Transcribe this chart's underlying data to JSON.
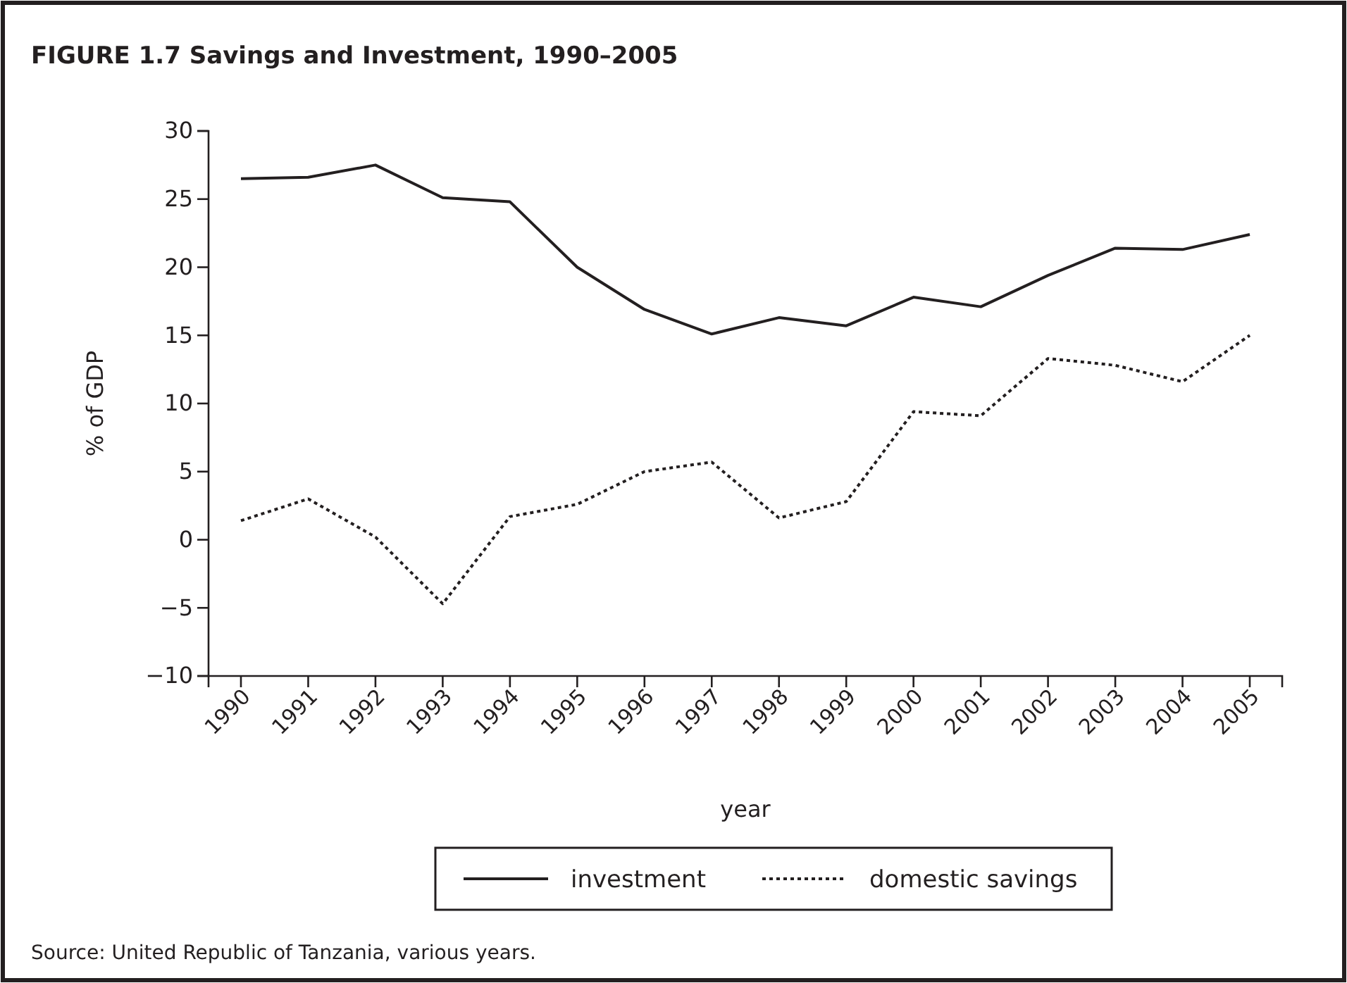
{
  "chart_data": {
    "type": "line",
    "title": "FIGURE 1.7  Savings and Investment, 1990–2005",
    "xlabel": "year",
    "ylabel": "% of GDP",
    "categories": [
      "1990",
      "1991",
      "1992",
      "1993",
      "1994",
      "1995",
      "1996",
      "1997",
      "1998",
      "1999",
      "2000",
      "2001",
      "2002",
      "2003",
      "2004",
      "2005"
    ],
    "series": [
      {
        "name": "investment",
        "color": "#231f20",
        "line_style": "solid",
        "values": [
          26.5,
          26.6,
          27.5,
          25.1,
          24.8,
          20.0,
          16.9,
          15.1,
          16.3,
          15.7,
          17.8,
          17.1,
          19.4,
          21.4,
          21.3,
          22.4
        ]
      },
      {
        "name": "domestic savings",
        "color": "#231f20",
        "line_style": "dotted",
        "values": [
          1.4,
          3.0,
          0.2,
          -4.7,
          1.7,
          2.6,
          5.0,
          5.7,
          1.6,
          2.8,
          9.4,
          9.1,
          13.3,
          12.8,
          11.6,
          15.0
        ]
      }
    ],
    "ylim": [
      -10,
      30
    ],
    "yticks": [
      {
        "value": -10,
        "label": "−10"
      },
      {
        "value": -5,
        "label": "−5"
      },
      0,
      5,
      10,
      15,
      20,
      25,
      30
    ],
    "legend": "bottom",
    "grid": false,
    "marker": "none",
    "annotations": [
      "Source: United Republic of Tanzania, various years."
    ]
  }
}
